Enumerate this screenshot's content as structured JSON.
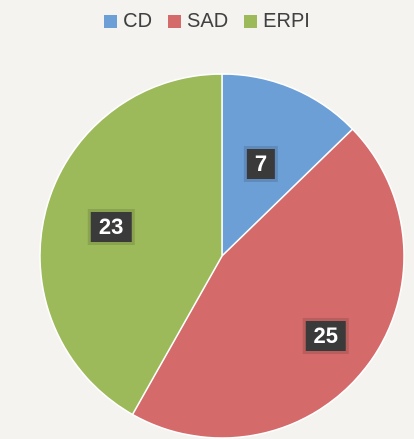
{
  "chart_data": {
    "type": "pie",
    "categories": [
      "CD",
      "SAD",
      "ERPI"
    ],
    "values": [
      7,
      25,
      23
    ],
    "colors": [
      "#6c9fd6",
      "#d46a6a",
      "#9cba5a"
    ],
    "legend_position": "top"
  }
}
